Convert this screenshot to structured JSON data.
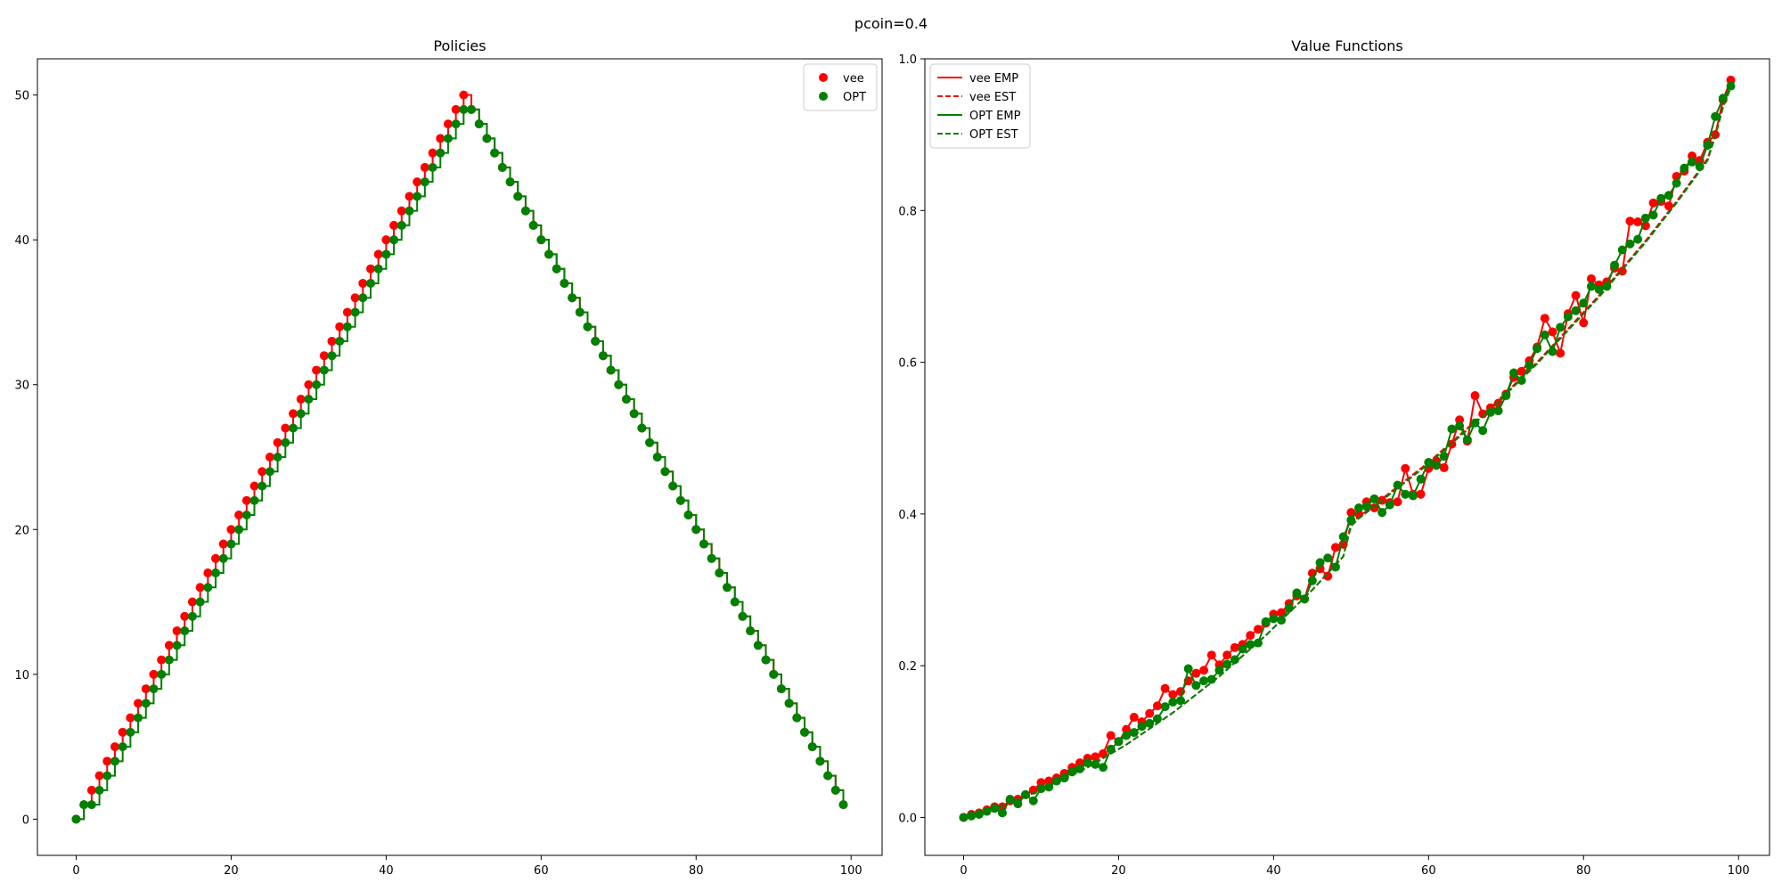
{
  "suptitle": "pcoin=0.4",
  "colors": {
    "vee": "#ff0000",
    "opt": "#008000"
  },
  "chart_data": [
    {
      "type": "scatter",
      "title": "Policies",
      "xlabel": "",
      "ylabel": "",
      "xlim": [
        -5,
        104
      ],
      "ylim": [
        -2.5,
        52.5
      ],
      "xticks": [
        0,
        20,
        40,
        60,
        80,
        100
      ],
      "yticks": [
        0,
        10,
        20,
        30,
        40,
        50
      ],
      "grid": false,
      "legend": {
        "location": "upper right",
        "entries": [
          {
            "label": "vee",
            "color": "#ff0000",
            "marker": "circle"
          },
          {
            "label": "OPT",
            "color": "#008000",
            "marker": "circle"
          }
        ]
      },
      "x": [
        0,
        1,
        2,
        3,
        4,
        5,
        6,
        7,
        8,
        9,
        10,
        11,
        12,
        13,
        14,
        15,
        16,
        17,
        18,
        19,
        20,
        21,
        22,
        23,
        24,
        25,
        26,
        27,
        28,
        29,
        30,
        31,
        32,
        33,
        34,
        35,
        36,
        37,
        38,
        39,
        40,
        41,
        42,
        43,
        44,
        45,
        46,
        47,
        48,
        49,
        50,
        51,
        52,
        53,
        54,
        55,
        56,
        57,
        58,
        59,
        60,
        61,
        62,
        63,
        64,
        65,
        66,
        67,
        68,
        69,
        70,
        71,
        72,
        73,
        74,
        75,
        76,
        77,
        78,
        79,
        80,
        81,
        82,
        83,
        84,
        85,
        86,
        87,
        88,
        89,
        90,
        91,
        92,
        93,
        94,
        95,
        96,
        97,
        98,
        99
      ],
      "series": [
        {
          "name": "vee",
          "color": "#ff0000",
          "style": "steps-post",
          "values": [
            0,
            1,
            2,
            3,
            4,
            5,
            6,
            7,
            8,
            9,
            10,
            11,
            12,
            13,
            14,
            15,
            16,
            17,
            18,
            19,
            20,
            21,
            22,
            23,
            24,
            25,
            26,
            27,
            28,
            29,
            30,
            31,
            32,
            33,
            34,
            35,
            36,
            37,
            38,
            39,
            40,
            41,
            42,
            43,
            44,
            45,
            46,
            47,
            48,
            49,
            50,
            49,
            48,
            47,
            46,
            45,
            44,
            43,
            42,
            41,
            40,
            39,
            38,
            37,
            36,
            35,
            34,
            33,
            32,
            31,
            30,
            29,
            28,
            27,
            26,
            25,
            24,
            23,
            22,
            21,
            20,
            19,
            18,
            17,
            16,
            15,
            14,
            13,
            12,
            11,
            10,
            9,
            8,
            7,
            6,
            5,
            4,
            3,
            2,
            1
          ]
        },
        {
          "name": "OPT",
          "color": "#008000",
          "style": "steps-post",
          "values": [
            0,
            1,
            1,
            2,
            3,
            4,
            5,
            6,
            7,
            8,
            9,
            10,
            11,
            12,
            13,
            14,
            15,
            16,
            17,
            18,
            19,
            20,
            21,
            22,
            23,
            24,
            25,
            26,
            27,
            28,
            29,
            30,
            31,
            32,
            33,
            34,
            35,
            36,
            37,
            38,
            39,
            40,
            41,
            42,
            43,
            44,
            45,
            46,
            47,
            48,
            49,
            49,
            48,
            47,
            46,
            45,
            44,
            43,
            42,
            41,
            40,
            39,
            38,
            37,
            36,
            35,
            34,
            33,
            32,
            31,
            30,
            29,
            28,
            27,
            26,
            25,
            24,
            23,
            22,
            21,
            20,
            19,
            18,
            17,
            16,
            15,
            14,
            13,
            12,
            11,
            10,
            9,
            8,
            7,
            6,
            5,
            4,
            3,
            2,
            1
          ]
        }
      ]
    },
    {
      "type": "line",
      "title": "Value Functions",
      "xlabel": "",
      "ylabel": "",
      "xlim": [
        -5,
        104
      ],
      "ylim": [
        -0.05,
        1.0
      ],
      "xticks": [
        0,
        20,
        40,
        60,
        80,
        100
      ],
      "yticks": [
        0.0,
        0.2,
        0.4,
        0.6,
        0.8,
        1.0
      ],
      "ytick_labels": [
        "0.0",
        "0.2",
        "0.4",
        "0.6",
        "0.8",
        "1.0"
      ],
      "grid": false,
      "legend": {
        "location": "upper left",
        "entries": [
          {
            "label": "vee EMP",
            "color": "#ff0000",
            "dash": "solid"
          },
          {
            "label": "vee EST",
            "color": "#ff0000",
            "dash": "dashed"
          },
          {
            "label": "OPT EMP",
            "color": "#008000",
            "dash": "solid"
          },
          {
            "label": "OPT EST",
            "color": "#008000",
            "dash": "dashed"
          }
        ]
      },
      "x": [
        0,
        1,
        2,
        3,
        4,
        5,
        6,
        7,
        8,
        9,
        10,
        11,
        12,
        13,
        14,
        15,
        16,
        17,
        18,
        19,
        20,
        21,
        22,
        23,
        24,
        25,
        26,
        27,
        28,
        29,
        30,
        31,
        32,
        33,
        34,
        35,
        36,
        37,
        38,
        39,
        40,
        41,
        42,
        43,
        44,
        45,
        46,
        47,
        48,
        49,
        50,
        51,
        52,
        53,
        54,
        55,
        56,
        57,
        58,
        59,
        60,
        61,
        62,
        63,
        64,
        65,
        66,
        67,
        68,
        69,
        70,
        71,
        72,
        73,
        74,
        75,
        76,
        77,
        78,
        79,
        80,
        81,
        82,
        83,
        84,
        85,
        86,
        87,
        88,
        89,
        90,
        91,
        92,
        93,
        94,
        95,
        96,
        97,
        98,
        99
      ],
      "series": [
        {
          "name": "vee EMP",
          "color": "#ff0000",
          "dash": "solid",
          "markers": true,
          "values": [
            0.0,
            0.004,
            0.006,
            0.01,
            0.014,
            0.014,
            0.022,
            0.024,
            0.03,
            0.036,
            0.046,
            0.048,
            0.052,
            0.058,
            0.066,
            0.072,
            0.078,
            0.08,
            0.084,
            0.108,
            0.1,
            0.116,
            0.132,
            0.126,
            0.137,
            0.147,
            0.17,
            0.162,
            0.166,
            0.18,
            0.19,
            0.194,
            0.214,
            0.201,
            0.214,
            0.224,
            0.228,
            0.24,
            0.248,
            0.256,
            0.268,
            0.27,
            0.282,
            0.292,
            0.288,
            0.322,
            0.328,
            0.318,
            0.356,
            0.36,
            0.402,
            0.4,
            0.416,
            0.408,
            0.418,
            0.415,
            0.416,
            0.46,
            0.426,
            0.426,
            0.46,
            0.47,
            0.461,
            0.492,
            0.524,
            0.496,
            0.556,
            0.532,
            0.54,
            0.546,
            0.558,
            0.58,
            0.588,
            0.602,
            0.62,
            0.658,
            0.64,
            0.612,
            0.664,
            0.688,
            0.652,
            0.71,
            0.702,
            0.706,
            0.724,
            0.72,
            0.786,
            0.785,
            0.78,
            0.81,
            0.812,
            0.806,
            0.845,
            0.852,
            0.872,
            0.866,
            0.89,
            0.9,
            0.946,
            0.972
          ]
        },
        {
          "name": "vee EST",
          "color": "#ff0000",
          "dash": "dashed",
          "markers": false,
          "values": [
            0.0,
            0.003,
            0.006,
            0.009,
            0.013,
            0.016,
            0.02,
            0.024,
            0.028,
            0.032,
            0.036,
            0.041,
            0.046,
            0.051,
            0.056,
            0.061,
            0.066,
            0.072,
            0.078,
            0.084,
            0.09,
            0.096,
            0.103,
            0.11,
            0.117,
            0.124,
            0.131,
            0.138,
            0.146,
            0.154,
            0.162,
            0.17,
            0.178,
            0.186,
            0.195,
            0.204,
            0.213,
            0.222,
            0.231,
            0.24,
            0.25,
            0.26,
            0.27,
            0.28,
            0.29,
            0.3,
            0.311,
            0.322,
            0.333,
            0.344,
            0.388,
            0.396,
            0.404,
            0.412,
            0.42,
            0.428,
            0.436,
            0.444,
            0.452,
            0.46,
            0.468,
            0.477,
            0.486,
            0.495,
            0.504,
            0.513,
            0.522,
            0.531,
            0.54,
            0.55,
            0.56,
            0.57,
            0.58,
            0.59,
            0.6,
            0.611,
            0.622,
            0.633,
            0.644,
            0.655,
            0.666,
            0.677,
            0.688,
            0.7,
            0.712,
            0.724,
            0.736,
            0.748,
            0.76,
            0.773,
            0.786,
            0.799,
            0.812,
            0.826,
            0.84,
            0.854,
            0.868,
            0.9,
            0.94,
            0.968
          ]
        },
        {
          "name": "OPT EMP",
          "color": "#008000",
          "dash": "solid",
          "markers": true,
          "values": [
            0.0,
            0.002,
            0.004,
            0.008,
            0.012,
            0.006,
            0.024,
            0.018,
            0.03,
            0.022,
            0.038,
            0.04,
            0.048,
            0.052,
            0.06,
            0.064,
            0.072,
            0.07,
            0.066,
            0.09,
            0.1,
            0.108,
            0.112,
            0.12,
            0.124,
            0.13,
            0.146,
            0.152,
            0.154,
            0.196,
            0.174,
            0.18,
            0.182,
            0.194,
            0.202,
            0.208,
            0.222,
            0.228,
            0.23,
            0.258,
            0.262,
            0.26,
            0.276,
            0.296,
            0.288,
            0.312,
            0.336,
            0.342,
            0.33,
            0.37,
            0.392,
            0.408,
            0.41,
            0.42,
            0.402,
            0.412,
            0.438,
            0.426,
            0.424,
            0.446,
            0.468,
            0.464,
            0.476,
            0.512,
            0.516,
            0.498,
            0.52,
            0.51,
            0.534,
            0.536,
            0.556,
            0.586,
            0.576,
            0.596,
            0.618,
            0.636,
            0.614,
            0.646,
            0.66,
            0.668,
            0.678,
            0.7,
            0.696,
            0.7,
            0.728,
            0.748,
            0.756,
            0.762,
            0.79,
            0.794,
            0.816,
            0.82,
            0.836,
            0.856,
            0.864,
            0.858,
            0.886,
            0.924,
            0.948,
            0.964
          ]
        },
        {
          "name": "OPT EST",
          "color": "#008000",
          "dash": "dashed",
          "markers": false,
          "values": [
            0.0,
            0.003,
            0.006,
            0.009,
            0.013,
            0.016,
            0.02,
            0.024,
            0.028,
            0.032,
            0.036,
            0.041,
            0.046,
            0.051,
            0.056,
            0.061,
            0.066,
            0.072,
            0.078,
            0.084,
            0.09,
            0.096,
            0.103,
            0.11,
            0.117,
            0.124,
            0.131,
            0.138,
            0.146,
            0.154,
            0.162,
            0.17,
            0.178,
            0.186,
            0.195,
            0.204,
            0.213,
            0.222,
            0.231,
            0.24,
            0.25,
            0.26,
            0.27,
            0.28,
            0.29,
            0.3,
            0.311,
            0.322,
            0.333,
            0.344,
            0.384,
            0.394,
            0.402,
            0.41,
            0.418,
            0.426,
            0.434,
            0.442,
            0.45,
            0.458,
            0.466,
            0.475,
            0.484,
            0.493,
            0.502,
            0.511,
            0.52,
            0.529,
            0.538,
            0.548,
            0.558,
            0.568,
            0.578,
            0.588,
            0.598,
            0.609,
            0.62,
            0.631,
            0.642,
            0.653,
            0.664,
            0.675,
            0.686,
            0.698,
            0.71,
            0.722,
            0.734,
            0.746,
            0.758,
            0.771,
            0.784,
            0.797,
            0.81,
            0.824,
            0.838,
            0.852,
            0.866,
            0.898,
            0.936,
            0.962
          ]
        }
      ]
    }
  ]
}
